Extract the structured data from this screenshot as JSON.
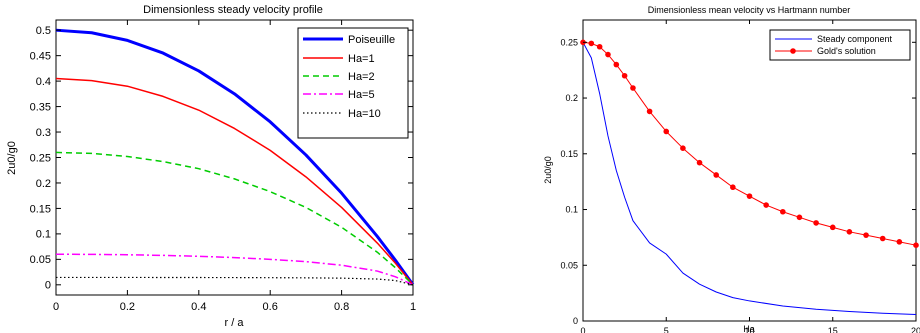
{
  "chart_data": [
    {
      "type": "line",
      "title": "Dimensionless steady velocity profile",
      "xlabel": "r / a",
      "ylabel": "2u0/g0",
      "xlim": [
        0,
        1
      ],
      "ylim": [
        -0.02,
        0.52
      ],
      "xticks": [
        0,
        0.2,
        0.4,
        0.6,
        0.8,
        1
      ],
      "xtick_labels": [
        "0",
        "0.2",
        "0.4",
        "0.6",
        "0.8",
        "1"
      ],
      "yticks": [
        0,
        0.05,
        0.1,
        0.15,
        0.2,
        0.25,
        0.3,
        0.35,
        0.4,
        0.45,
        0.5
      ],
      "ytick_labels": [
        "0",
        "0.05",
        "0.1",
        "0.15",
        "0.2",
        "0.25",
        "0.3",
        "0.35",
        "0.4",
        "0.45",
        "0.5"
      ],
      "grid": false,
      "legend_position": "top-right",
      "x": [
        0,
        0.1,
        0.2,
        0.3,
        0.4,
        0.5,
        0.6,
        0.7,
        0.8,
        0.9,
        0.95,
        1
      ],
      "series": [
        {
          "name": "Poiseuille",
          "color": "#0000ff",
          "style": "solid",
          "width": 3,
          "values": [
            0.5,
            0.495,
            0.48,
            0.455,
            0.42,
            0.375,
            0.32,
            0.255,
            0.18,
            0.095,
            0.049,
            0
          ]
        },
        {
          "name": "Ha=1",
          "color": "#ff0000",
          "style": "solid",
          "width": 1.5,
          "values": [
            0.405,
            0.401,
            0.39,
            0.37,
            0.343,
            0.307,
            0.264,
            0.212,
            0.152,
            0.082,
            0.043,
            0
          ]
        },
        {
          "name": "Ha=2",
          "color": "#00cc00",
          "style": "dashed",
          "width": 1.5,
          "values": [
            0.26,
            0.258,
            0.252,
            0.242,
            0.228,
            0.208,
            0.183,
            0.152,
            0.113,
            0.064,
            0.034,
            0
          ]
        },
        {
          "name": "Ha=5",
          "color": "#ff00ff",
          "style": "dashdot",
          "width": 1.5,
          "values": [
            0.06,
            0.0598,
            0.059,
            0.0578,
            0.056,
            0.0535,
            0.05,
            0.0455,
            0.0385,
            0.027,
            0.016,
            0
          ]
        },
        {
          "name": "Ha=10",
          "color": "#000000",
          "style": "dotted",
          "width": 1.2,
          "values": [
            0.0145,
            0.0145,
            0.0145,
            0.0144,
            0.0143,
            0.0142,
            0.014,
            0.0137,
            0.0131,
            0.0113,
            0.0085,
            0
          ]
        }
      ]
    },
    {
      "type": "line",
      "title": "Dimensionless mean velocity vs Hartmann number",
      "xlabel": "Ha",
      "ylabel": "2u0/g0",
      "xlim": [
        0,
        20
      ],
      "ylim": [
        0,
        0.27
      ],
      "xticks": [
        0,
        5,
        10,
        15,
        20
      ],
      "xtick_labels": [
        "0",
        "5",
        "10",
        "15",
        "20"
      ],
      "yticks": [
        0,
        0.05,
        0.1,
        0.15,
        0.2,
        0.25
      ],
      "ytick_labels": [
        "0",
        "0.05",
        "0.1",
        "0.15",
        "0.2",
        "0.25"
      ],
      "grid": false,
      "legend_position": "top-right",
      "series": [
        {
          "name": "Steady component",
          "color": "#0000ff",
          "style": "solid",
          "width": 1,
          "markers": false,
          "x": [
            0,
            0.5,
            1,
            1.5,
            2,
            2.5,
            3,
            4,
            5,
            6,
            7,
            8,
            9,
            10,
            12,
            14,
            16,
            18,
            20
          ],
          "values": [
            0.25,
            0.236,
            0.204,
            0.166,
            0.135,
            0.111,
            0.09,
            0.07,
            0.06,
            0.043,
            0.033,
            0.026,
            0.021,
            0.018,
            0.0135,
            0.0105,
            0.0085,
            0.007,
            0.0058
          ]
        },
        {
          "name": "Gold's solution",
          "color": "#ff0000",
          "style": "solid",
          "width": 1,
          "markers": true,
          "x": [
            0,
            0.5,
            1,
            1.5,
            2,
            2.5,
            3,
            4,
            5,
            6,
            7,
            8,
            9,
            10,
            11,
            12,
            13,
            14,
            15,
            16,
            17,
            18,
            19,
            20
          ],
          "values": [
            0.25,
            0.249,
            0.246,
            0.239,
            0.23,
            0.22,
            0.209,
            0.188,
            0.17,
            0.155,
            0.142,
            0.131,
            0.12,
            0.112,
            0.104,
            0.098,
            0.093,
            0.088,
            0.084,
            0.08,
            0.077,
            0.074,
            0.071,
            0.068
          ]
        }
      ]
    }
  ]
}
